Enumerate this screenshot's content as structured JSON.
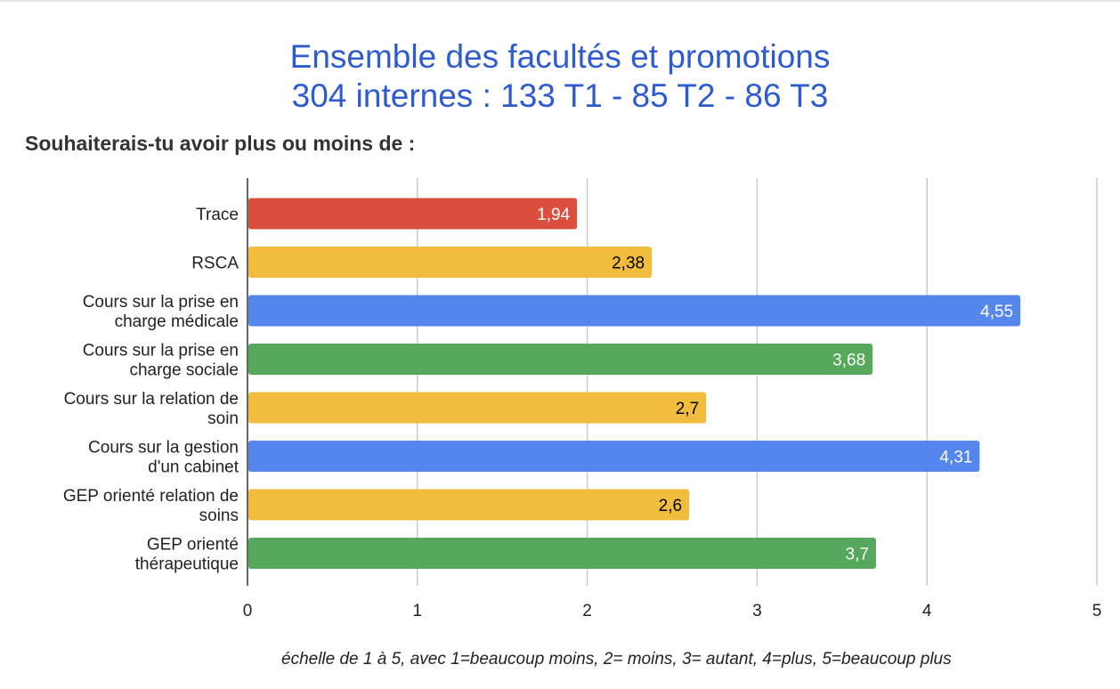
{
  "title_lines": [
    "Ensemble des facultés et promotions",
    "304 internes : 133 T1 - 85 T2 - 86 T3"
  ],
  "subtitle": "Souhaiterais-tu avoir plus ou moins de :",
  "footnote": "échelle de 1 à 5, avec 1=beaucoup moins, 2= moins, 3= autant, 4=plus, 5=beaucoup plus",
  "chart_data": {
    "type": "bar",
    "orientation": "horizontal",
    "categories": [
      [
        "Trace"
      ],
      [
        "RSCA"
      ],
      [
        "Cours sur la prise en",
        "charge médicale"
      ],
      [
        "Cours sur la prise en",
        "charge sociale"
      ],
      [
        "Cours sur la relation de",
        "soin"
      ],
      [
        "Cours sur la gestion",
        "d'un cabinet"
      ],
      [
        "GEP orienté relation de",
        "soins"
      ],
      [
        "GEP orienté",
        "thérapeutique"
      ]
    ],
    "values": [
      1.94,
      2.38,
      4.55,
      3.68,
      2.7,
      4.31,
      2.6,
      3.7
    ],
    "data_labels": [
      "1,94",
      "2,38",
      "4,55",
      "3,68",
      "2,7",
      "4,31",
      "2,6",
      "3,7"
    ],
    "bar_colors": [
      "#db4f3f",
      "#f2bd3f",
      "#5486ec",
      "#56a95c",
      "#f2bd3f",
      "#5486ec",
      "#f2bd3f",
      "#56a95c"
    ],
    "label_colors": [
      "#ffffff",
      "#000000",
      "#ffffff",
      "#ffffff",
      "#000000",
      "#ffffff",
      "#000000",
      "#ffffff"
    ],
    "xlim": [
      0,
      5
    ],
    "xticks": [
      "0",
      "1",
      "2",
      "3",
      "4",
      "5"
    ],
    "grid": true,
    "legend": "none"
  }
}
